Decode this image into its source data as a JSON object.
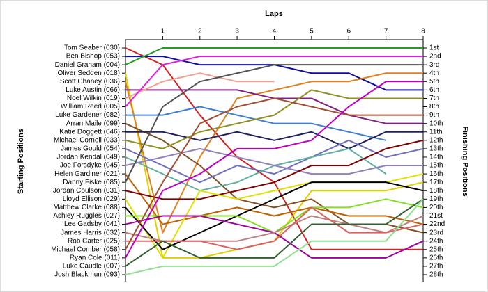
{
  "chart_data": {
    "type": "line",
    "title": "Laps",
    "y_label": "Starting Positions",
    "y2_label": "Finishing Positions",
    "x": [
      0,
      1,
      2,
      3,
      4,
      5,
      6,
      7,
      8
    ],
    "xlim": [
      0,
      8
    ],
    "xticks": [
      1,
      2,
      3,
      4,
      5,
      6,
      7,
      8
    ],
    "ylim": [
      1,
      28
    ],
    "y_inverted": true,
    "yticks": [
      {
        "value": 1,
        "label": "Tom Seaber (030)"
      },
      {
        "value": 2,
        "label": "Ben Bishop (053)"
      },
      {
        "value": 3,
        "label": "Daniel Graham (004)"
      },
      {
        "value": 4,
        "label": "Oliver Sedden (018)"
      },
      {
        "value": 5,
        "label": "Scott Chaney (036)"
      },
      {
        "value": 6,
        "label": "Luke Austin (066)"
      },
      {
        "value": 7,
        "label": "Noel Wilkin (019)"
      },
      {
        "value": 8,
        "label": "William Reed (005)"
      },
      {
        "value": 9,
        "label": "Luke Gardener (082)"
      },
      {
        "value": 10,
        "label": "Arran Maile (099)"
      },
      {
        "value": 11,
        "label": "Katie Doggett (046)"
      },
      {
        "value": 12,
        "label": "Michael Cornell (033)"
      },
      {
        "value": 13,
        "label": "James Gould (054)"
      },
      {
        "value": 14,
        "label": "Jordan Kendal (049)"
      },
      {
        "value": 15,
        "label": "Joe Forsdyke (045)"
      },
      {
        "value": 16,
        "label": "Helen Gardiner (021)"
      },
      {
        "value": 17,
        "label": "Danny Fiske (085)"
      },
      {
        "value": 18,
        "label": "Jordan Coulson (031)"
      },
      {
        "value": 19,
        "label": "Lloyd Ellison (029)"
      },
      {
        "value": 20,
        "label": "Matthew Clarke (088)"
      },
      {
        "value": 21,
        "label": "Ashley Ruggles (027)"
      },
      {
        "value": 22,
        "label": "Lee Gadsby (041)"
      },
      {
        "value": 23,
        "label": "James Harris (032)"
      },
      {
        "value": 24,
        "label": "Rob Carter (025)"
      },
      {
        "value": 25,
        "label": "Michael Comber (058)"
      },
      {
        "value": 26,
        "label": "Ryan Cole (011)"
      },
      {
        "value": 27,
        "label": "Luke Caudle (007)"
      },
      {
        "value": 28,
        "label": "Josh Blackmun (093)"
      }
    ],
    "y2lim": [
      1,
      28
    ],
    "y2ticks": [
      {
        "value": 1,
        "label": "1st"
      },
      {
        "value": 2,
        "label": "2nd"
      },
      {
        "value": 3,
        "label": "3rd"
      },
      {
        "value": 4,
        "label": "4th"
      },
      {
        "value": 5,
        "label": "5th"
      },
      {
        "value": 6,
        "label": "6th"
      },
      {
        "value": 7,
        "label": "7th"
      },
      {
        "value": 8,
        "label": "8th"
      },
      {
        "value": 9,
        "label": "9th"
      },
      {
        "value": 10,
        "label": "10th"
      },
      {
        "value": 11,
        "label": "11th"
      },
      {
        "value": 12,
        "label": "12th"
      },
      {
        "value": 13,
        "label": "13th"
      },
      {
        "value": 14,
        "label": "14th"
      },
      {
        "value": 15,
        "label": "15th"
      },
      {
        "value": 16,
        "label": "16th"
      },
      {
        "value": 17,
        "label": "17th"
      },
      {
        "value": 18,
        "label": "18th"
      },
      {
        "value": 19,
        "label": "19th"
      },
      {
        "value": 20,
        "label": "20th"
      },
      {
        "value": 21,
        "label": "21st"
      },
      {
        "value": 22,
        "label": "22nd"
      },
      {
        "value": 23,
        "label": "23rd"
      },
      {
        "value": 24,
        "label": "24th"
      },
      {
        "value": 25,
        "label": "25th"
      },
      {
        "value": 26,
        "label": "26th"
      },
      {
        "value": 27,
        "label": "27th"
      },
      {
        "value": 28,
        "label": "28th"
      }
    ],
    "series": [
      {
        "color": "#d42020",
        "values": [
          1,
          3,
          9,
          14,
          17,
          25,
          25,
          25,
          25
        ]
      },
      {
        "color": "#1010a0",
        "values": [
          2,
          2,
          3,
          3,
          3,
          4,
          4,
          6,
          6
        ]
      },
      {
        "color": "#20a020",
        "values": [
          3,
          1,
          1,
          1,
          1,
          1,
          1,
          1,
          1
        ]
      },
      {
        "color": "#e0d000",
        "values": [
          4,
          26,
          26,
          25,
          24,
          18,
          18,
          18,
          17
        ]
      },
      {
        "color": "#e08020",
        "values": [
          5,
          23,
          14,
          7,
          6,
          5,
          5,
          4,
          4
        ]
      },
      {
        "color": "#802080",
        "values": [
          6,
          6,
          6,
          6,
          7,
          7,
          9,
          10,
          10
        ]
      },
      {
        "color": "#f0a090",
        "values": [
          7,
          5,
          4,
          5,
          5,
          null,
          null,
          null,
          null
        ]
      },
      {
        "color": "#e020e0",
        "values": [
          8,
          3,
          2,
          2,
          2,
          2,
          2,
          2,
          2
        ]
      },
      {
        "color": "#4080d0",
        "values": [
          9,
          9,
          8,
          9,
          10,
          10,
          11,
          12,
          null
        ]
      },
      {
        "color": "#805020",
        "values": [
          10,
          12,
          15,
          19,
          20,
          19,
          22,
          22,
          23
        ]
      },
      {
        "color": "#202060",
        "values": [
          11,
          11,
          12,
          11,
          12,
          11,
          13,
          11,
          11
        ]
      },
      {
        "color": "#909020",
        "values": [
          12,
          13,
          11,
          10,
          9,
          6,
          7,
          7,
          7
        ]
      },
      {
        "color": "#7070c0",
        "values": [
          13,
          15,
          17,
          15,
          16,
          14,
          12,
          14,
          13
        ]
      },
      {
        "color": "#60b0a0",
        "values": [
          14,
          16,
          18,
          17,
          15,
          14,
          13,
          16,
          null
        ]
      },
      {
        "color": "#9080c0",
        "values": [
          15,
          14,
          13,
          14,
          15,
          16,
          16,
          15,
          15
        ]
      },
      {
        "color": "#c06000",
        "values": [
          16,
          22,
          21,
          20,
          21,
          20,
          21,
          21,
          22
        ]
      },
      {
        "color": "#505050",
        "values": [
          17,
          8,
          5,
          4,
          3,
          3,
          3,
          3,
          3
        ]
      },
      {
        "color": "#800000",
        "values": [
          18,
          19,
          19,
          18,
          17,
          15,
          15,
          13,
          12
        ]
      },
      {
        "color": "#e0e000",
        "values": [
          19,
          26,
          18,
          19,
          18,
          17,
          17,
          17,
          16
        ]
      },
      {
        "color": "#000000",
        "values": [
          20,
          25,
          23,
          21,
          19,
          17,
          17,
          17,
          18
        ]
      },
      {
        "color": "#80e020",
        "values": [
          21,
          21,
          21,
          21,
          23,
          20,
          20,
          19,
          20
        ]
      },
      {
        "color": "#a000a0",
        "values": [
          22,
          21,
          21,
          22,
          23,
          26,
          26,
          26,
          24
        ]
      },
      {
        "color": "#c08080",
        "values": [
          23,
          24,
          24,
          24,
          23,
          21,
          22,
          23,
          21
        ]
      },
      {
        "color": "#e06060",
        "values": [
          24,
          24,
          24,
          25,
          24,
          20,
          23,
          23,
          22
        ]
      },
      {
        "color": "#a05030",
        "values": [
          25,
          17,
          10,
          8,
          7,
          8,
          9,
          9,
          9
        ]
      },
      {
        "color": "#c000c0",
        "values": [
          26,
          18,
          16,
          13,
          13,
          12,
          8,
          5,
          5
        ]
      },
      {
        "color": "#306030",
        "values": [
          27,
          24,
          26,
          26,
          26,
          22,
          22,
          22,
          19
        ]
      },
      {
        "color": "#90e090",
        "values": [
          28,
          27,
          27,
          27,
          27,
          24,
          24,
          24,
          19
        ]
      }
    ]
  }
}
